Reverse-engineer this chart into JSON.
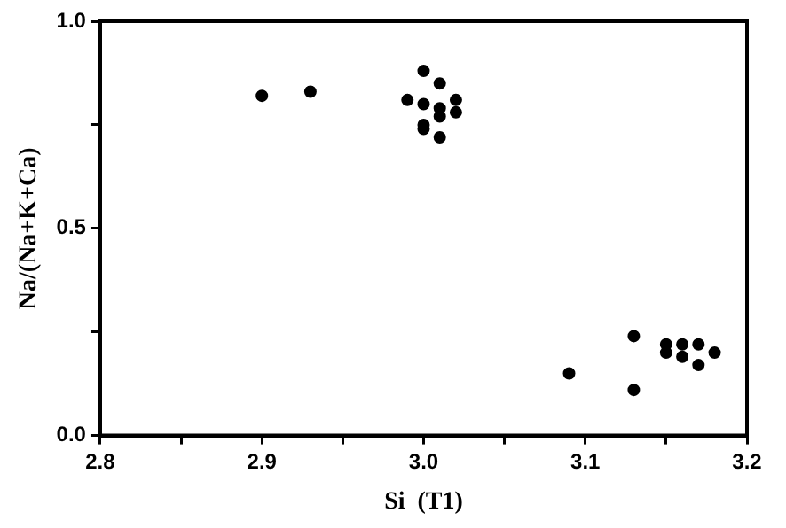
{
  "chart_data": {
    "type": "scatter",
    "xlabel": "Si  (T1)",
    "ylabel": "Na/(Na+K+Ca)",
    "marker": "circle",
    "grid": false,
    "xlim": [
      2.8,
      3.2
    ],
    "xticks": [
      2.8,
      {
        "value": 2.85,
        "label": null
      },
      2.9,
      {
        "value": 2.95,
        "label": null
      },
      {
        "value": 3,
        "label": "3.0"
      },
      {
        "value": 3.05,
        "label": null
      },
      3.1,
      {
        "value": 3.15,
        "label": null
      },
      3.2
    ],
    "ylim": [
      0,
      1
    ],
    "yticks": [
      {
        "value": 0,
        "label": "0.0"
      },
      {
        "value": 0.25,
        "label": null
      },
      0.5,
      {
        "value": 0.75,
        "label": null
      },
      {
        "value": 1,
        "label": "1.0"
      }
    ],
    "series": [
      {
        "color": "#000000",
        "x": [
          2.9,
          2.93,
          3.0,
          3.01,
          2.99,
          3.0,
          3.01,
          3.01,
          3.02,
          3.02,
          3.0,
          3.0,
          3.01,
          3.09,
          3.13,
          3.13,
          3.15,
          3.15,
          3.16,
          3.16,
          3.17,
          3.17,
          3.18
        ],
        "values": [
          0.82,
          0.83,
          0.88,
          0.85,
          0.81,
          0.8,
          0.79,
          0.77,
          0.81,
          0.78,
          0.75,
          0.74,
          0.72,
          0.15,
          0.24,
          0.11,
          0.22,
          0.2,
          0.22,
          0.19,
          0.22,
          0.17,
          0.2
        ]
      }
    ]
  }
}
